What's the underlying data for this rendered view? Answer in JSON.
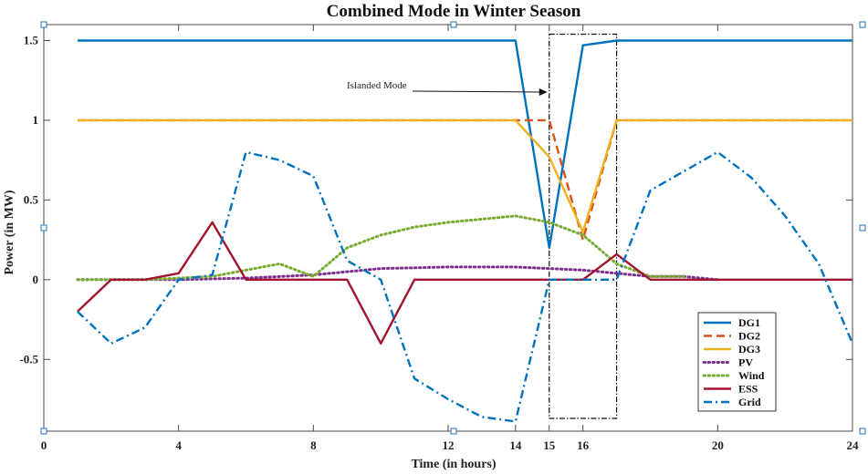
{
  "chart_data": {
    "type": "line",
    "title": "Combined Mode in Winter Season",
    "xlabel": "Time (in hours)",
    "ylabel": "Power (in MW)",
    "xlim": [
      0,
      24
    ],
    "ylim": [
      -0.9,
      1.5
    ],
    "x_ticks": [
      0,
      4,
      8,
      12,
      14,
      15,
      16,
      20,
      24
    ],
    "y_ticks": [
      -0.5,
      0,
      0.5,
      1,
      1.5
    ],
    "y_tick_labels": [
      "-0.5",
      "0",
      "0.5",
      "1",
      "1.5"
    ],
    "grid": false,
    "legend_position": "bottom-right",
    "annotation": {
      "text": "Islanded Mode",
      "x_start": 11,
      "x_end": 15,
      "y": 1.2
    },
    "highlight_window": {
      "x_start": 15,
      "x_end": 17,
      "y_min": -0.87,
      "y_max": 1.54
    },
    "series": [
      {
        "name": "DG1",
        "color": "#0072BD",
        "dash": "solid",
        "x": [
          1,
          14,
          15,
          16,
          17,
          24
        ],
        "y": [
          1.5,
          1.5,
          0.2,
          1.47,
          1.5,
          1.5
        ]
      },
      {
        "name": "DG2",
        "color": "#D95319",
        "dash": "dashed",
        "x": [
          1,
          14,
          15,
          16,
          17,
          24
        ],
        "y": [
          1.0,
          1.0,
          1.0,
          0.25,
          1.0,
          1.0
        ]
      },
      {
        "name": "DG3",
        "color": "#EDB120",
        "dash": "solid",
        "x": [
          1,
          14,
          15,
          16,
          17,
          24
        ],
        "y": [
          1.0,
          1.0,
          0.77,
          0.3,
          1.0,
          1.0
        ]
      },
      {
        "name": "PV",
        "color": "#7E2F8E",
        "dash": "dotted",
        "x": [
          1,
          4,
          6,
          8,
          10,
          12,
          14,
          16,
          18,
          19,
          20
        ],
        "y": [
          0,
          0,
          0.01,
          0.03,
          0.07,
          0.08,
          0.08,
          0.06,
          0.02,
          0.02,
          0
        ]
      },
      {
        "name": "Wind",
        "color": "#77AC30",
        "dash": "dotted",
        "x": [
          1,
          3,
          5,
          7,
          8,
          9,
          10,
          11,
          12,
          13,
          14,
          15,
          16,
          17,
          18,
          19
        ],
        "y": [
          0,
          0,
          0.02,
          0.1,
          0.02,
          0.2,
          0.28,
          0.33,
          0.36,
          0.38,
          0.4,
          0.36,
          0.28,
          0.1,
          0.02,
          0.02
        ]
      },
      {
        "name": "ESS",
        "color": "#A2142F",
        "dash": "solid",
        "x": [
          1,
          2,
          3,
          4,
          5,
          6,
          7,
          8,
          9,
          10,
          11,
          12,
          13,
          14,
          15,
          16,
          17,
          18,
          19,
          20,
          24
        ],
        "y": [
          -0.2,
          0,
          0,
          0.04,
          0.36,
          0,
          0,
          0,
          0,
          -0.4,
          0,
          0,
          0,
          0,
          0,
          0,
          0.16,
          0,
          0,
          0,
          0
        ]
      },
      {
        "name": "Grid",
        "color": "#0072BD",
        "dash": "dashdot",
        "x": [
          1,
          2,
          3,
          4,
          5,
          6,
          7,
          8,
          9,
          10,
          11,
          12,
          13,
          14,
          15,
          16,
          17,
          18,
          19,
          20,
          21,
          22,
          23,
          24
        ],
        "y": [
          -0.2,
          -0.4,
          -0.3,
          0,
          0.03,
          0.8,
          0.75,
          0.65,
          0.12,
          0,
          -0.62,
          -0.75,
          -0.86,
          -0.89,
          0,
          0,
          0,
          0.56,
          0.68,
          0.8,
          0.64,
          0.4,
          0.1,
          -0.4
        ]
      }
    ]
  }
}
